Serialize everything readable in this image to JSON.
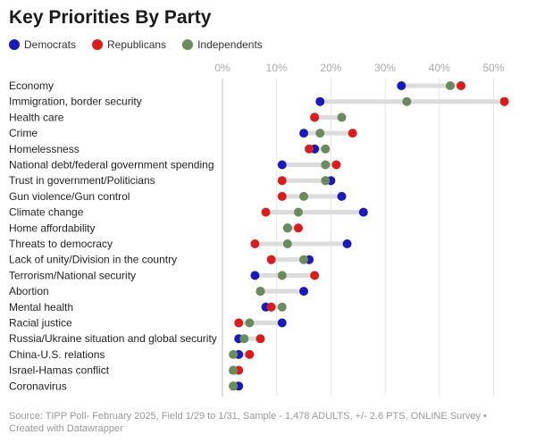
{
  "title": "Key Priorities By Party",
  "source": "Source: TIPP Poll- February 2025, Field 1/29 to 1/31, Sample - 1,478 ADULTS, +/- 2.6 PTS, ONLINE Survey • Created with Datawrapper",
  "chart_data": {
    "type": "dot-range",
    "title": "Key Priorities By Party",
    "xlim": [
      0,
      55
    ],
    "ticks": [
      0,
      10,
      20,
      30,
      40,
      50
    ],
    "tick_labels": [
      "0%",
      "10%",
      "20%",
      "30%",
      "40%",
      "50%"
    ],
    "legend_position": "top-left",
    "grid": true,
    "categories": [
      "Economy",
      "Immigration, border security",
      "Health care",
      "Crime",
      "Homelessness",
      "National debt/federal government spending",
      "Trust in government/Politicians",
      "Gun violence/Gun control",
      "Climate change",
      "Home affordability",
      "Threats to democracy",
      "Lack of unity/Division in the country",
      "Terrorism/National security",
      "Abortion",
      "Mental health",
      "Racial justice",
      "Russia/Ukraine situation and global security",
      "China-U.S. relations",
      "Israel-Hamas conflict",
      "Coronavirus"
    ],
    "series": [
      {
        "name": "Democrats",
        "color": "#1a1ab8",
        "values": [
          33,
          18,
          17,
          15,
          17,
          11,
          20,
          22,
          26,
          12,
          23,
          16,
          6,
          15,
          8,
          11,
          3,
          3,
          2,
          3
        ]
      },
      {
        "name": "Republicans",
        "color": "#d91c1c",
        "values": [
          44,
          52,
          17,
          24,
          16,
          21,
          11,
          11,
          8,
          14,
          6,
          9,
          17,
          7,
          9,
          3,
          7,
          5,
          3,
          2
        ]
      },
      {
        "name": "Independents",
        "color": "#6b8a5e",
        "values": [
          42,
          34,
          22,
          18,
          19,
          19,
          19,
          15,
          14,
          12,
          12,
          15,
          11,
          7,
          11,
          5,
          4,
          2,
          2,
          2
        ]
      }
    ]
  }
}
